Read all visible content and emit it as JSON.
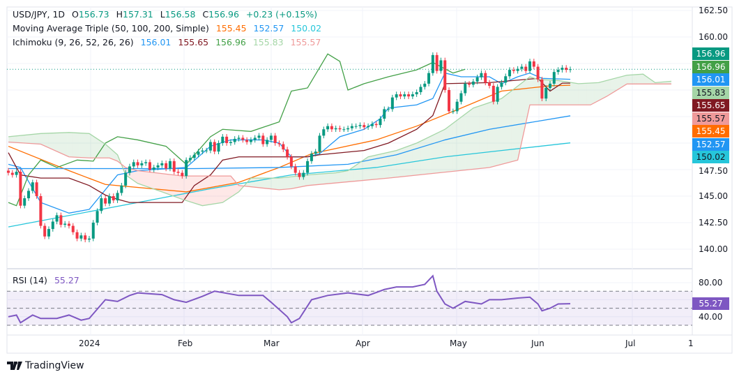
{
  "header": {
    "symbol": "USD/JPY, 1D",
    "o_label": "O",
    "o": "156.73",
    "h_label": "H",
    "h": "157.31",
    "l_label": "L",
    "l": "156.58",
    "c_label": "C",
    "c": "156.96",
    "change": "+0.23 (+0.15%)"
  },
  "ma": {
    "name": "Moving Average Triple (50, 100, 200, Simple)",
    "v50": "155.45",
    "v100": "152.57",
    "v200": "150.02"
  },
  "ichimoku": {
    "name": "Ichimoku (9, 26, 52, 26, 26)",
    "conversion": "156.01",
    "base": "155.65",
    "lagging": "156.96",
    "spanA": "155.83",
    "spanB": "155.57"
  },
  "rsi": {
    "name": "RSI (14)",
    "value": "55.27"
  },
  "price_tags": [
    {
      "v": "156.96",
      "bg": "#089981",
      "fg": "#ffffff"
    },
    {
      "v": "156.96",
      "bg": "#43a047",
      "fg": "#ffffff"
    },
    {
      "v": "156.01",
      "bg": "#2196f3",
      "fg": "#ffffff"
    },
    {
      "v": "155.83",
      "bg": "#a5d6a7",
      "fg": "#131722"
    },
    {
      "v": "155.65",
      "bg": "#801922",
      "fg": "#ffffff"
    },
    {
      "v": "155.57",
      "bg": "#ef9a9a",
      "fg": "#131722"
    },
    {
      "v": "155.45",
      "bg": "#ff6d00",
      "fg": "#ffffff"
    },
    {
      "v": "152.57",
      "bg": "#2196f3",
      "fg": "#ffffff"
    },
    {
      "v": "150.02",
      "bg": "#26c6da",
      "fg": "#131722"
    }
  ],
  "price_axis": [
    "162.50",
    "160.00",
    "147.50",
    "145.00",
    "142.50",
    "140.00"
  ],
  "rsi_axis": [
    "80.00",
    "40.00"
  ],
  "time_axis": [
    "2024",
    "Feb",
    "Mar",
    "Apr",
    "May",
    "Jun",
    "Jul",
    "1"
  ],
  "branding": "TradingView",
  "colors": {
    "up": "#089981",
    "down": "#f23645",
    "ma50": "#ff6d00",
    "ma100": "#2196f3",
    "ma200": "#26c6da",
    "tenkan": "#2196f3",
    "kijun": "#801922",
    "chikou": "#43a047",
    "spanA": "#a5d6a7",
    "spanB": "#ef9a9a",
    "rsi": "#7e57c2"
  },
  "chart_data": {
    "type": "candlestick",
    "ylim": [
      138.5,
      162.5
    ],
    "closes": [
      147.2,
      147.0,
      147.3,
      144.1,
      144.8,
      145.5,
      146.3,
      145.0,
      142.2,
      141.2,
      141.9,
      142.6,
      143.2,
      142.3,
      142.4,
      142.2,
      141.6,
      141.0,
      141.3,
      140.9,
      141.0,
      142.5,
      143.6,
      144.8,
      144.3,
      145.0,
      144.6,
      145.3,
      146.0,
      147.2,
      147.8,
      148.2,
      147.9,
      148.1,
      148.2,
      147.5,
      147.7,
      147.9,
      148.1,
      147.6,
      148.3,
      147.3,
      147.2,
      146.9,
      148.4,
      148.6,
      148.9,
      149.2,
      149.3,
      149.3,
      150.1,
      149.2,
      150.0,
      150.6,
      150.0,
      150.1,
      150.4,
      150.5,
      150.3,
      150.1,
      150.3,
      150.5,
      150.7,
      149.9,
      150.3,
      150.7,
      150.0,
      149.9,
      149.4,
      148.7,
      147.8,
      147.2,
      146.8,
      147.2,
      148.3,
      149.0,
      149.2,
      150.7,
      151.3,
      151.6,
      151.3,
      151.4,
      151.3,
      151.3,
      151.4,
      151.6,
      151.6,
      151.7,
      151.5,
      151.6,
      151.8,
      151.7,
      152.3,
      153.2,
      153.2,
      154.3,
      154.6,
      154.4,
      154.6,
      154.4,
      154.6,
      154.8,
      155.3,
      155.6,
      156.6,
      158.3,
      156.8,
      157.8,
      155.0,
      153.0,
      153.0,
      153.9,
      154.7,
      155.6,
      155.5,
      155.8,
      156.2,
      156.6,
      155.7,
      155.4,
      153.9,
      155.3,
      155.7,
      156.3,
      156.9,
      156.8,
      157.0,
      157.2,
      156.8,
      157.7,
      157.2,
      156.0,
      154.2,
      155.2,
      155.6,
      156.7,
      156.9,
      157.1,
      156.9,
      156.96
    ],
    "last_close": 156.96,
    "series": [
      {
        "name": "MA 50",
        "pts": [
          [
            0,
            149.7
          ],
          [
            15,
            147.4
          ],
          [
            24,
            146.1
          ],
          [
            44,
            145.4
          ],
          [
            57,
            146.3
          ],
          [
            67,
            147.7
          ],
          [
            75,
            149.0
          ],
          [
            91,
            150.3
          ],
          [
            101,
            151.6
          ],
          [
            112,
            153.3
          ],
          [
            122,
            154.9
          ],
          [
            134,
            155.4
          ],
          [
            139,
            155.45
          ]
        ]
      },
      {
        "name": "MA 100",
        "pts": [
          [
            0,
            147.6
          ],
          [
            46,
            147.6
          ],
          [
            67,
            147.7
          ],
          [
            84,
            148.0
          ],
          [
            96,
            148.9
          ],
          [
            108,
            150.3
          ],
          [
            119,
            151.3
          ],
          [
            139,
            152.57
          ]
        ]
      },
      {
        "name": "MA 200",
        "pts": [
          [
            0,
            142.1
          ],
          [
            32,
            144.4
          ],
          [
            50,
            145.7
          ],
          [
            70,
            147.0
          ],
          [
            91,
            147.7
          ],
          [
            108,
            148.7
          ],
          [
            122,
            149.3
          ],
          [
            139,
            150.02
          ]
        ]
      },
      {
        "name": "Conversion",
        "pts": [
          [
            0,
            148.0
          ],
          [
            3,
            147.7
          ],
          [
            8,
            144.4
          ],
          [
            15,
            143.4
          ],
          [
            20,
            143.75
          ],
          [
            27,
            147.0
          ],
          [
            32,
            147.4
          ],
          [
            44,
            147.7
          ],
          [
            50,
            149.7
          ],
          [
            55,
            150.3
          ],
          [
            63,
            150.3
          ],
          [
            67,
            150.0
          ],
          [
            70,
            148.7
          ],
          [
            74,
            148.7
          ],
          [
            77,
            149.0
          ],
          [
            82,
            150.6
          ],
          [
            88,
            151.3
          ],
          [
            92,
            152.3
          ],
          [
            94,
            153.3
          ],
          [
            101,
            153.6
          ],
          [
            105,
            154.2
          ],
          [
            108,
            156.6
          ],
          [
            112,
            156.25
          ],
          [
            119,
            156.25
          ],
          [
            122,
            155.6
          ],
          [
            126,
            156.25
          ],
          [
            129,
            156.6
          ],
          [
            132,
            156.1
          ],
          [
            139,
            156.01
          ]
        ]
      },
      {
        "name": "Base",
        "pts": [
          [
            0,
            149.1
          ],
          [
            3,
            147.0
          ],
          [
            8,
            146.7
          ],
          [
            15,
            146.7
          ],
          [
            20,
            146.0
          ],
          [
            24,
            145.1
          ],
          [
            27,
            144.7
          ],
          [
            30,
            144.4
          ],
          [
            43,
            144.4
          ],
          [
            46,
            146.0
          ],
          [
            50,
            147.0
          ],
          [
            53,
            148.4
          ],
          [
            57,
            148.7
          ],
          [
            74,
            148.7
          ],
          [
            77,
            148.9
          ],
          [
            88,
            149.3
          ],
          [
            94,
            150.0
          ],
          [
            101,
            151.3
          ],
          [
            105,
            152.6
          ],
          [
            108,
            155.6
          ],
          [
            119,
            155.7
          ],
          [
            131,
            156.1
          ],
          [
            134,
            154.9
          ],
          [
            137,
            155.65
          ],
          [
            139,
            155.65
          ]
        ]
      },
      {
        "name": "Lagging",
        "pts": [
          [
            0,
            144.4
          ],
          [
            2,
            144.1
          ],
          [
            5,
            147.0
          ],
          [
            8,
            148.4
          ],
          [
            12,
            147.7
          ],
          [
            17,
            148.4
          ],
          [
            21,
            148.3
          ],
          [
            24,
            150.0
          ],
          [
            27,
            150.6
          ],
          [
            32,
            150.3
          ],
          [
            39,
            149.7
          ],
          [
            44,
            148.0
          ],
          [
            50,
            150.6
          ],
          [
            53,
            151.3
          ],
          [
            60,
            151.1
          ],
          [
            67,
            152.0
          ],
          [
            70,
            154.9
          ],
          [
            74,
            155.2
          ],
          [
            79,
            158.4
          ],
          [
            82,
            157.7
          ],
          [
            84,
            155.0
          ],
          [
            88,
            155.6
          ],
          [
            94,
            156.25
          ],
          [
            101,
            156.9
          ],
          [
            105,
            157.6
          ],
          [
            110,
            156.6
          ],
          [
            113,
            156.96
          ]
        ]
      },
      {
        "name": "Lead 1",
        "pts": [
          [
            0,
            150.6
          ],
          [
            8,
            150.9
          ],
          [
            15,
            151.0
          ],
          [
            20,
            150.9
          ],
          [
            24,
            149.9
          ],
          [
            27,
            148.9
          ],
          [
            29,
            147.0
          ],
          [
            32,
            146.2
          ],
          [
            38,
            145.4
          ],
          [
            43,
            144.7
          ],
          [
            48,
            144.1
          ],
          [
            53,
            144.4
          ],
          [
            57,
            145.4
          ],
          [
            60,
            146.7
          ],
          [
            67,
            146.7
          ],
          [
            74,
            147.0
          ],
          [
            81,
            147.2
          ],
          [
            84,
            147.4
          ],
          [
            89,
            148.7
          ],
          [
            96,
            149.3
          ],
          [
            101,
            150.0
          ],
          [
            108,
            151.3
          ],
          [
            115,
            153.3
          ],
          [
            122,
            154.2
          ],
          [
            129,
            156.25
          ],
          [
            131,
            156.0
          ],
          [
            136,
            155.9
          ],
          [
            141,
            155.6
          ],
          [
            146,
            155.7
          ],
          [
            153,
            156.4
          ],
          [
            157,
            156.5
          ],
          [
            160,
            155.7
          ],
          [
            164,
            155.83
          ]
        ]
      },
      {
        "name": "Lead 2",
        "pts": [
          [
            0,
            150.1
          ],
          [
            8,
            149.9
          ],
          [
            15,
            148.7
          ],
          [
            20,
            148.6
          ],
          [
            25,
            148.6
          ],
          [
            27,
            148.3
          ],
          [
            29,
            147.7
          ],
          [
            32,
            147.4
          ],
          [
            43,
            146.9
          ],
          [
            55,
            146.9
          ],
          [
            57,
            146.0
          ],
          [
            67,
            145.6
          ],
          [
            70,
            145.7
          ],
          [
            74,
            146.0
          ],
          [
            94,
            146.7
          ],
          [
            119,
            147.7
          ],
          [
            126,
            148.4
          ],
          [
            129,
            153.6
          ],
          [
            144,
            153.6
          ],
          [
            148,
            154.4
          ],
          [
            153,
            155.57
          ],
          [
            164,
            155.57
          ]
        ]
      }
    ],
    "rsi": {
      "ylim": [
        22,
        92
      ],
      "levels": [
        70,
        50,
        30
      ],
      "pts": [
        [
          0,
          40
        ],
        [
          2,
          42
        ],
        [
          3,
          33
        ],
        [
          6,
          42
        ],
        [
          8,
          38
        ],
        [
          12,
          38
        ],
        [
          15,
          42
        ],
        [
          18,
          36
        ],
        [
          20,
          38
        ],
        [
          24,
          60
        ],
        [
          27,
          58
        ],
        [
          30,
          65
        ],
        [
          32,
          68
        ],
        [
          38,
          66
        ],
        [
          41,
          60
        ],
        [
          44,
          57
        ],
        [
          48,
          64
        ],
        [
          51,
          70
        ],
        [
          57,
          65
        ],
        [
          63,
          65
        ],
        [
          65,
          57
        ],
        [
          69,
          40
        ],
        [
          70,
          33
        ],
        [
          72,
          38
        ],
        [
          75,
          60
        ],
        [
          79,
          65
        ],
        [
          84,
          68
        ],
        [
          89,
          65
        ],
        [
          93,
          72
        ],
        [
          96,
          75
        ],
        [
          100,
          75
        ],
        [
          103,
          78
        ],
        [
          105,
          88
        ],
        [
          106,
          70
        ],
        [
          108,
          55
        ],
        [
          110,
          50
        ],
        [
          113,
          58
        ],
        [
          117,
          55
        ],
        [
          119,
          60
        ],
        [
          122,
          60
        ],
        [
          126,
          62
        ],
        [
          129,
          63
        ],
        [
          131,
          55
        ],
        [
          132,
          47
        ],
        [
          134,
          50
        ],
        [
          136,
          55
        ],
        [
          139,
          55.27
        ]
      ]
    }
  }
}
